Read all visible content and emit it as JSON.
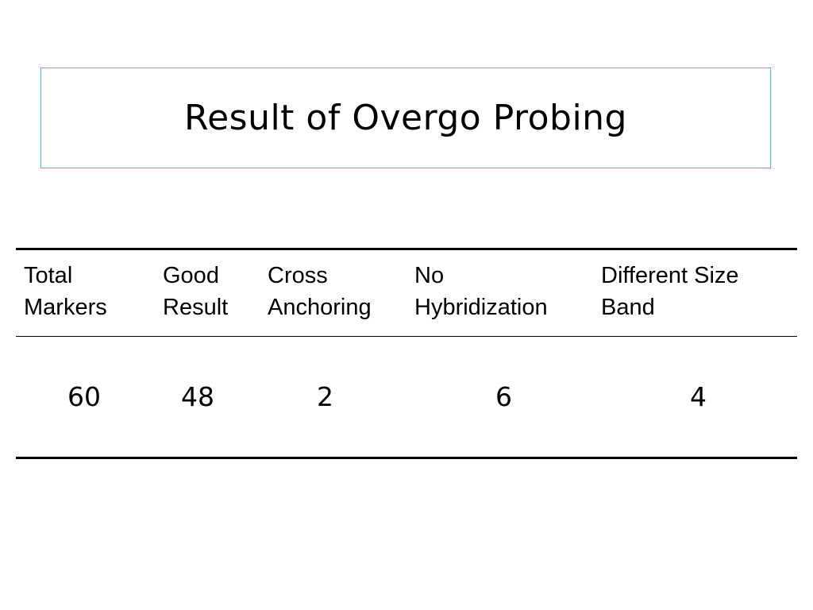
{
  "title": "Result of Overgo Probing",
  "table": {
    "headers": [
      {
        "line1": "Total",
        "line2": "Markers"
      },
      {
        "line1": "Good",
        "line2": "Result"
      },
      {
        "line1": "Cross",
        "line2": "Anchoring"
      },
      {
        "line1": "No",
        "line2": "Hybridization"
      },
      {
        "line1": "Different Size",
        "line2": "Band"
      }
    ],
    "rows": [
      [
        "60",
        "48",
        "2",
        "6",
        "4"
      ]
    ]
  },
  "colors": {
    "title_border": "#33cccc",
    "rule": "#000000",
    "background": "#ffffff"
  }
}
